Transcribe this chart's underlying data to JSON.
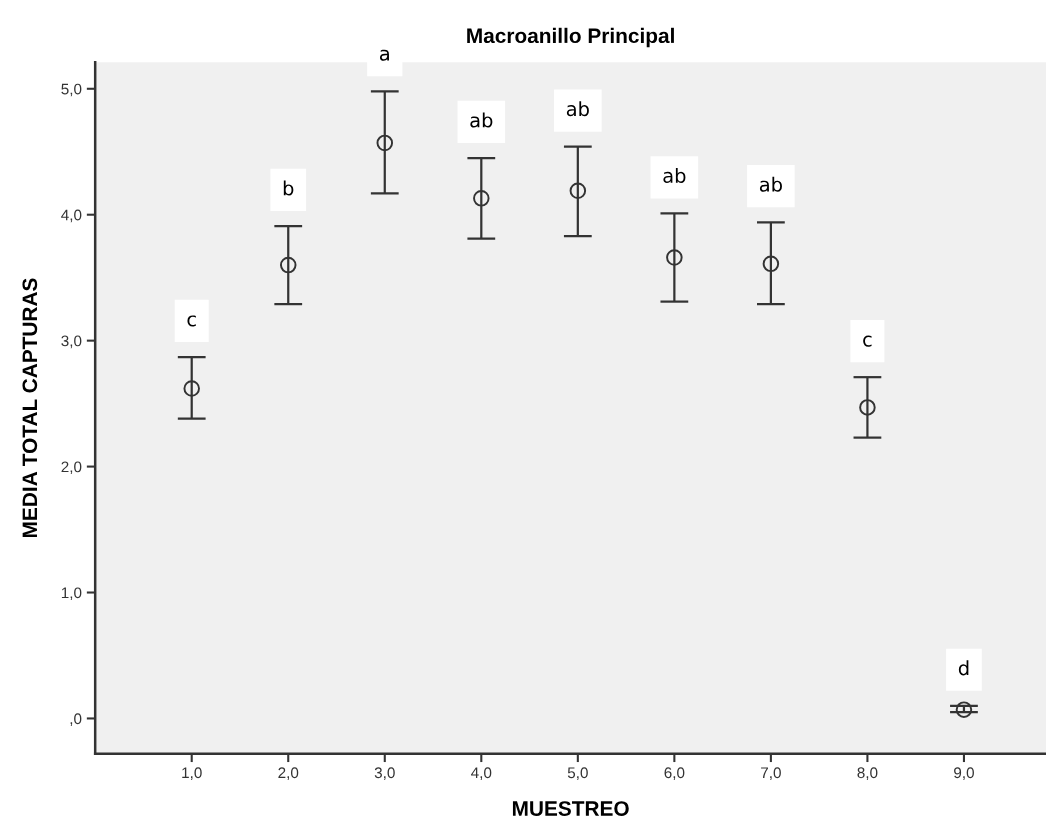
{
  "chart_data": {
    "type": "scatter",
    "title": "Macroanillo Principal",
    "xlabel": "MUESTREO",
    "ylabel": "MEDIA TOTAL CAPTURAS",
    "x": [
      1,
      2,
      3,
      4,
      5,
      6,
      7,
      8,
      9
    ],
    "values": [
      2.62,
      3.6,
      4.57,
      4.13,
      4.19,
      3.66,
      3.61,
      2.47,
      0.07
    ],
    "errors": [
      [
        2.38,
        2.87
      ],
      [
        3.29,
        3.91
      ],
      [
        4.17,
        4.98
      ],
      [
        3.81,
        4.45
      ],
      [
        3.83,
        4.54
      ],
      [
        3.31,
        4.01
      ],
      [
        3.29,
        3.94
      ],
      [
        2.23,
        2.71
      ],
      [
        0.05,
        0.1
      ]
    ],
    "color": "#333333",
    "marker": "circle",
    "xlim": [
      0.0,
      9.85
    ],
    "ylim": [
      -0.28,
      5.21
    ],
    "xticks": [
      {
        "value": 1,
        "label": "1,0"
      },
      {
        "value": 2,
        "label": "2,0"
      },
      {
        "value": 3,
        "label": "3,0"
      },
      {
        "value": 4,
        "label": "4,0"
      },
      {
        "value": 5,
        "label": "5,0"
      },
      {
        "value": 6,
        "label": "6,0"
      },
      {
        "value": 7,
        "label": "7,0"
      },
      {
        "value": 8,
        "label": "8,0"
      },
      {
        "value": 9,
        "label": "9,0"
      }
    ],
    "yticks": [
      {
        "value": 0,
        "label": ",0"
      },
      {
        "value": 1,
        "label": "1,0"
      },
      {
        "value": 2,
        "label": "2,0"
      },
      {
        "value": 3,
        "label": "3,0"
      },
      {
        "value": 4,
        "label": "4,0"
      },
      {
        "value": 5,
        "label": "5,0"
      }
    ],
    "grid": false,
    "annotations": [
      "c",
      "b",
      "a",
      "ab",
      "ab",
      "ab",
      "ab",
      "c",
      "d"
    ]
  }
}
